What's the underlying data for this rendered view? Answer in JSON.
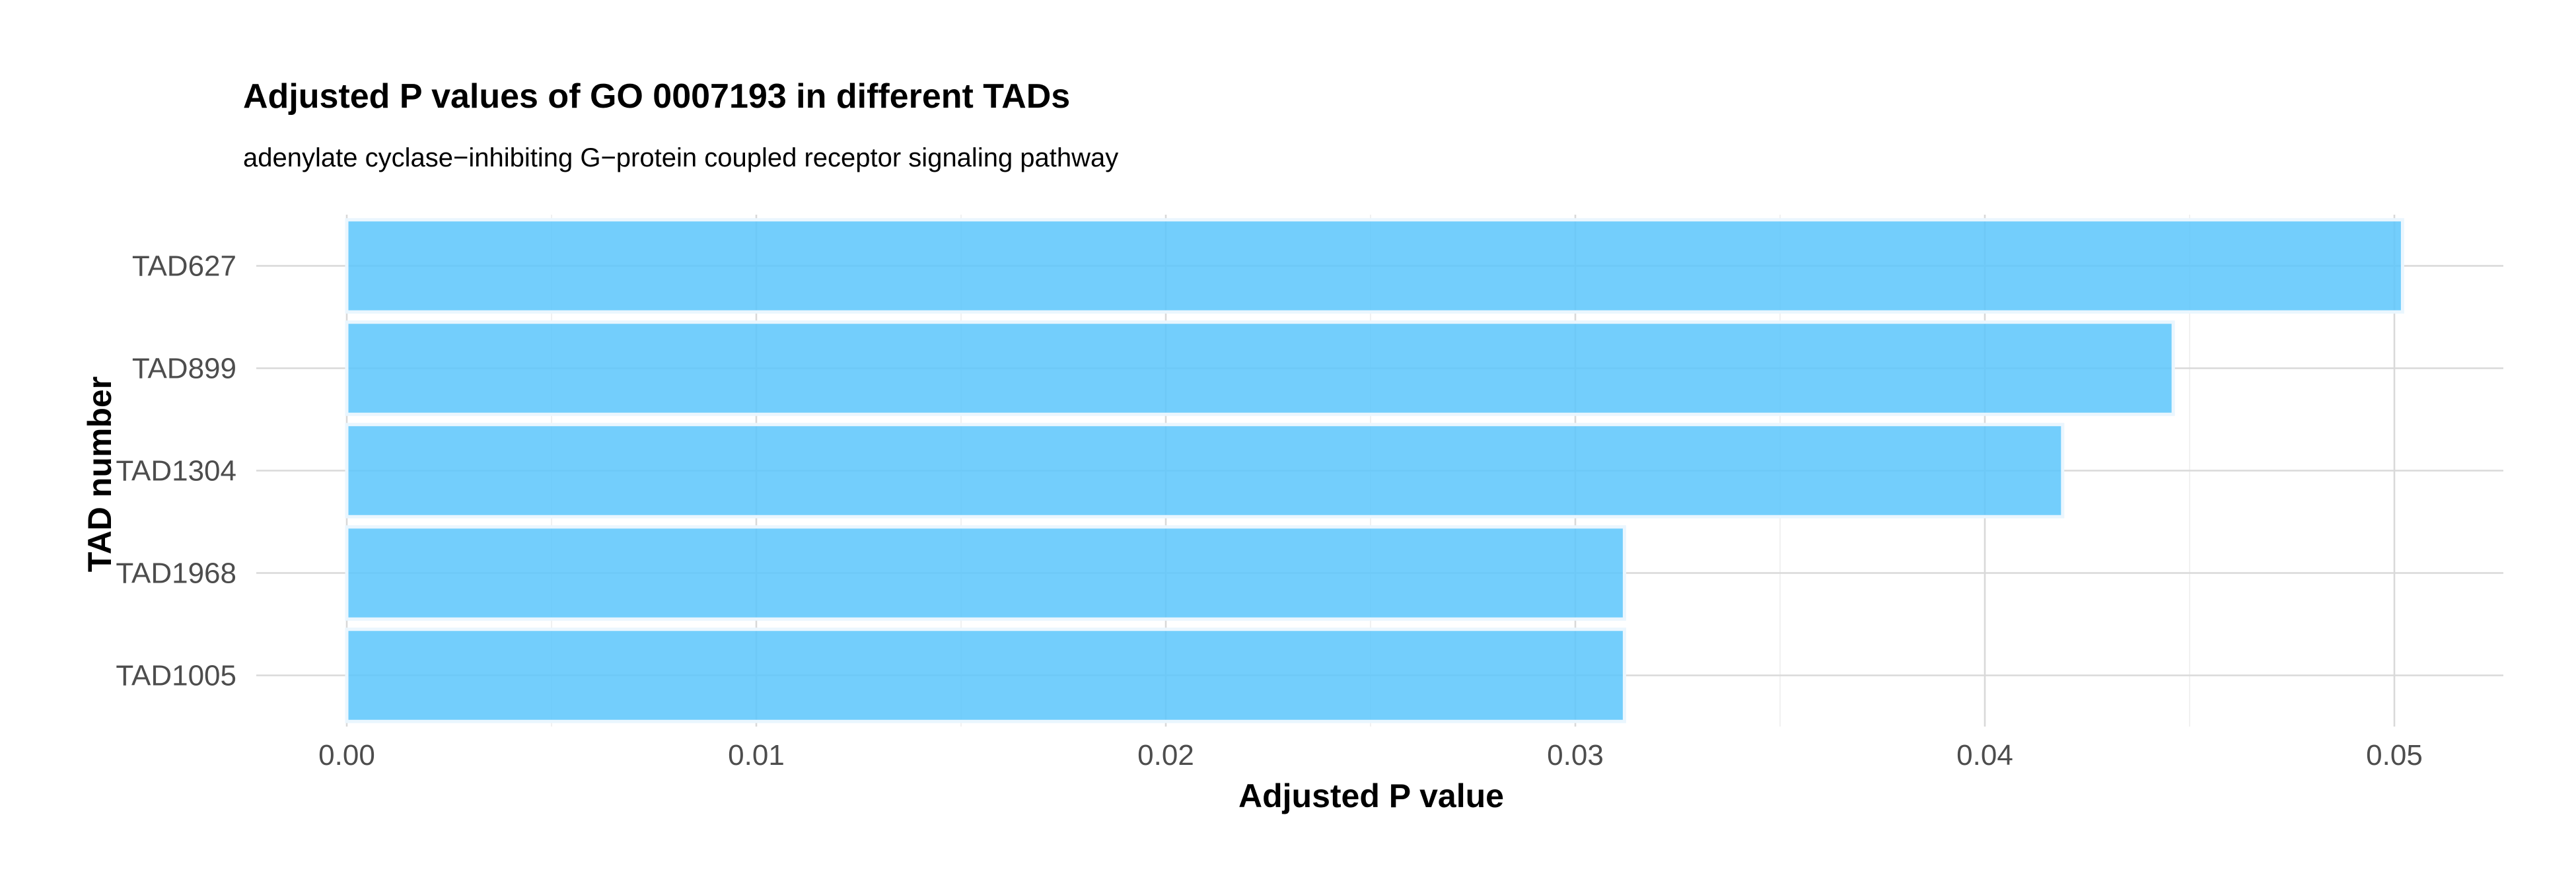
{
  "chart_data": {
    "type": "bar",
    "orientation": "horizontal",
    "title": "Adjusted P values of GO 0007193 in different TADs",
    "subtitle": "adenylate cyclase−inhibiting G−protein coupled receptor signaling pathway",
    "xlabel": "Adjusted P value",
    "ylabel": "TAD number",
    "categories": [
      "TAD627",
      "TAD899",
      "TAD1304",
      "TAD1968",
      "TAD1005"
    ],
    "values": [
      0.0502,
      0.0446,
      0.0419,
      0.0312,
      0.0312
    ],
    "xlim": [
      0,
      0.0527
    ],
    "x_ticks": [
      0.0,
      0.01,
      0.02,
      0.03,
      0.04,
      0.05
    ],
    "x_tick_labels": [
      "0.00",
      "0.01",
      "0.02",
      "0.03",
      "0.04",
      "0.05"
    ],
    "grid": true,
    "legend": "none",
    "bar_color": "#5bc5fb"
  }
}
